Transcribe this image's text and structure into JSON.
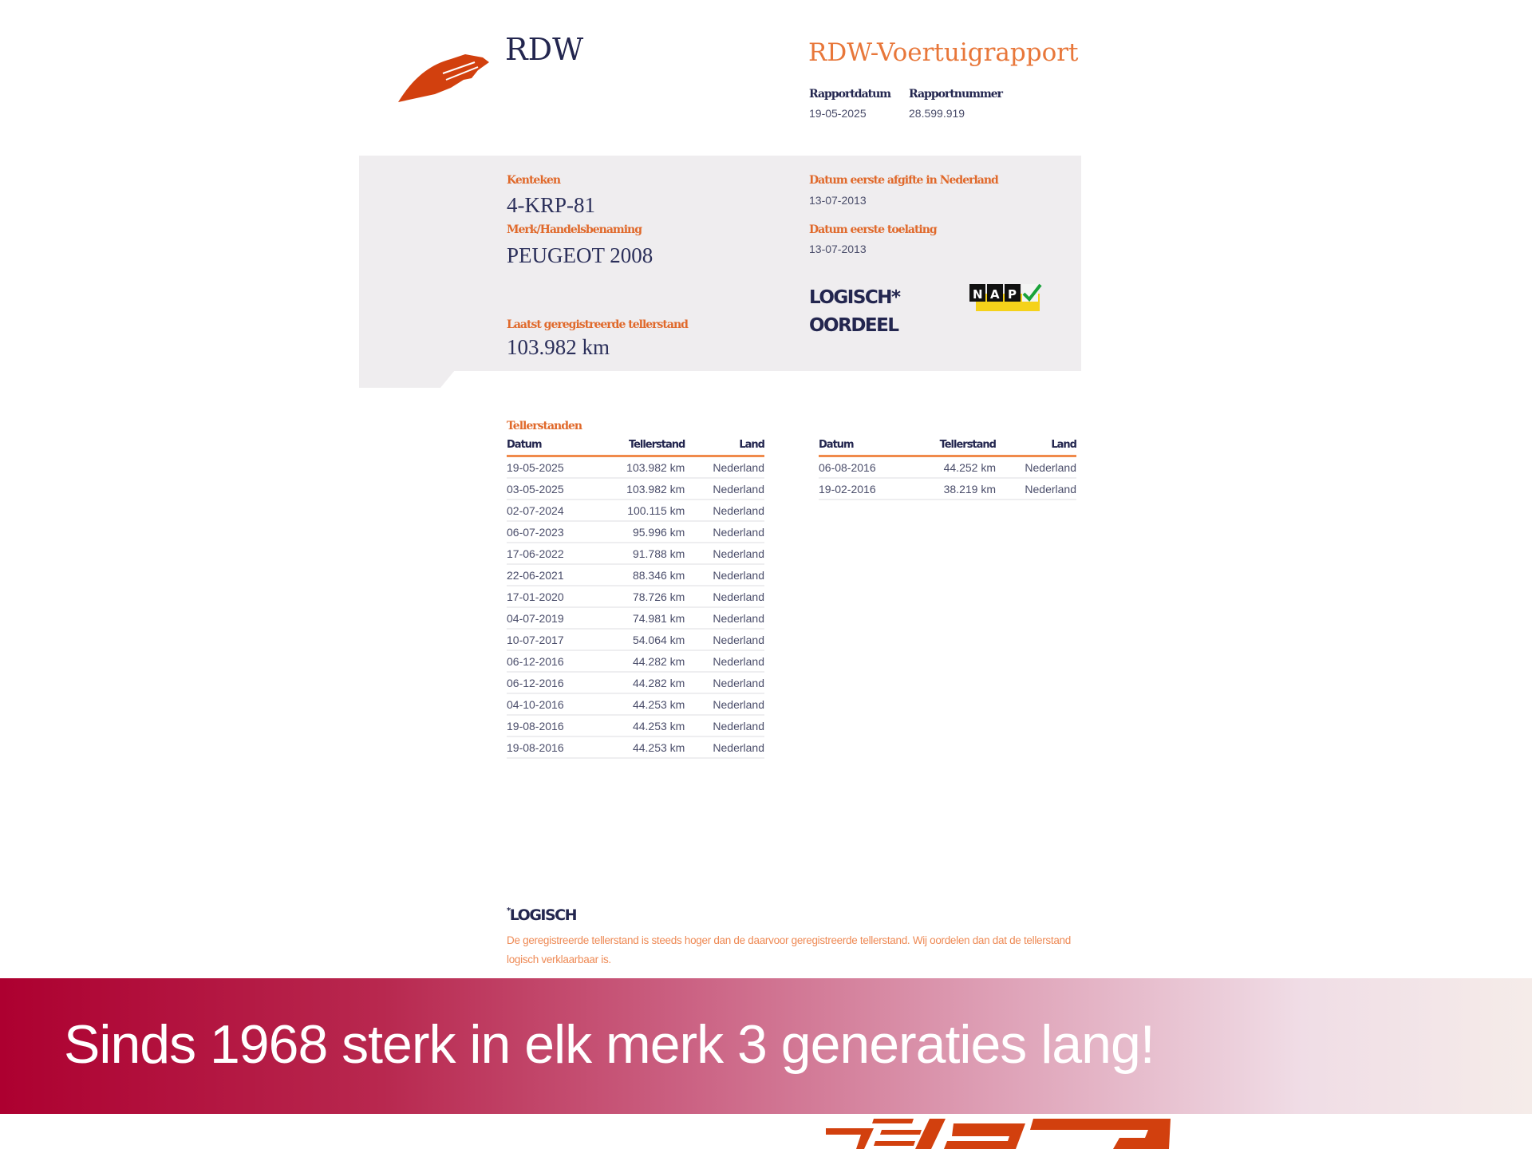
{
  "header": {
    "org": "RDW",
    "title": "RDW-Voertuigrapport",
    "report_date_label": "Rapportdatum",
    "report_date": "19-05-2025",
    "report_number_label": "Rapportnummer",
    "report_number": "28.599.919"
  },
  "vehicle": {
    "plate_label": "Kenteken",
    "plate": "4-KRP-81",
    "make_label": "Merk/Handelsbenaming",
    "make": "PEUGEOT 2008",
    "last_odometer_label": "Laatst geregistreerde tellerstand",
    "last_odometer": "103.982 km",
    "first_issue_nl_label": "Datum eerste afgifte in Nederland",
    "first_issue_nl": "13-07-2013",
    "first_admission_label": "Datum eerste toelating",
    "first_admission": "13-07-2013",
    "verdict": "LOGISCH*",
    "verdict_label": "OORDEEL",
    "nap_logo": "NAP"
  },
  "readings": {
    "title": "Tellerstanden",
    "columns": [
      "Datum",
      "Tellerstand",
      "Land"
    ],
    "left": [
      [
        "19-05-2025",
        "103.982 km",
        "Nederland"
      ],
      [
        "03-05-2025",
        "103.982 km",
        "Nederland"
      ],
      [
        "02-07-2024",
        "100.115 km",
        "Nederland"
      ],
      [
        "06-07-2023",
        "95.996 km",
        "Nederland"
      ],
      [
        "17-06-2022",
        "91.788 km",
        "Nederland"
      ],
      [
        "22-06-2021",
        "88.346 km",
        "Nederland"
      ],
      [
        "17-01-2020",
        "78.726 km",
        "Nederland"
      ],
      [
        "04-07-2019",
        "74.981 km",
        "Nederland"
      ],
      [
        "10-07-2017",
        "54.064 km",
        "Nederland"
      ],
      [
        "06-12-2016",
        "44.282 km",
        "Nederland"
      ],
      [
        "06-12-2016",
        "44.282 km",
        "Nederland"
      ],
      [
        "04-10-2016",
        "44.253 km",
        "Nederland"
      ],
      [
        "19-08-2016",
        "44.253 km",
        "Nederland"
      ],
      [
        "19-08-2016",
        "44.253 km",
        "Nederland"
      ]
    ],
    "right": [
      [
        "06-08-2016",
        "44.252 km",
        "Nederland"
      ],
      [
        "19-02-2016",
        "38.219 km",
        "Nederland"
      ]
    ]
  },
  "footnote": {
    "marker": "*",
    "title": "LOGISCH",
    "text": "De geregistreerde tellerstand is steeds hoger dan de daarvoor geregistreerde tellerstand. Wij oordelen dan dat de tellerstand logisch verklaarbaar is."
  },
  "banner": {
    "slogan": "Sinds 1968 sterk in elk merk 3 generaties lang!"
  },
  "colors": {
    "accent": "#e0692b",
    "navy": "#23264f",
    "banner": "#ad0030",
    "panel": "#efedef"
  }
}
